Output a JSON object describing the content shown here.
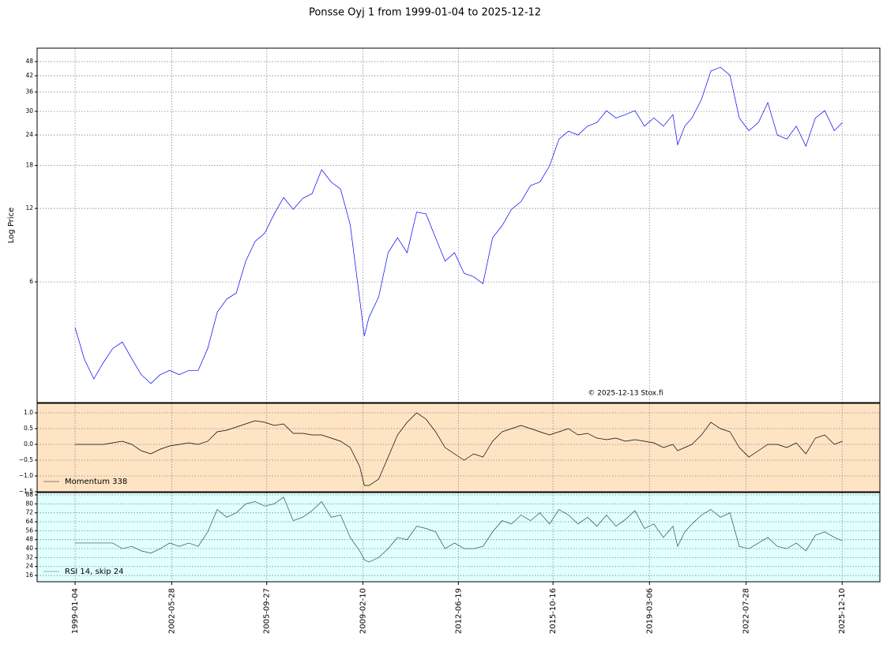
{
  "title": "Ponsse Oyj 1 from 1999-01-04 to 2025-12-12",
  "chart_data": [
    {
      "type": "line",
      "ylabel": "Log Price",
      "log": true,
      "grid": true,
      "annotation": "© 2025-12-13 Stox.fi",
      "ylim": [
        1.92,
        54.5
      ],
      "yticks": [
        6,
        12,
        18,
        24,
        30,
        36,
        42,
        48
      ],
      "x": [
        "1999-01-04",
        "1999-05-01",
        "1999-09-01",
        "2000-01-01",
        "2000-05-01",
        "2000-09-01",
        "2001-01-01",
        "2001-05-01",
        "2001-09-01",
        "2002-01-01",
        "2002-05-01",
        "2002-09-01",
        "2003-01-01",
        "2003-05-01",
        "2003-09-01",
        "2004-01-01",
        "2004-05-01",
        "2004-09-01",
        "2005-01-01",
        "2005-05-01",
        "2005-09-01",
        "2006-01-01",
        "2006-05-01",
        "2006-09-01",
        "2007-01-01",
        "2007-05-01",
        "2007-09-01",
        "2008-01-01",
        "2008-05-01",
        "2008-09-01",
        "2009-01-01",
        "2009-03-01",
        "2009-05-01",
        "2009-09-01",
        "2010-01-01",
        "2010-05-01",
        "2010-09-01",
        "2011-01-01",
        "2011-05-01",
        "2011-09-01",
        "2012-01-01",
        "2012-05-01",
        "2012-09-01",
        "2013-01-01",
        "2013-05-01",
        "2013-09-01",
        "2014-01-01",
        "2014-05-01",
        "2014-09-01",
        "2015-01-01",
        "2015-05-01",
        "2015-09-01",
        "2016-01-01",
        "2016-05-01",
        "2016-09-01",
        "2017-01-01",
        "2017-05-01",
        "2017-09-01",
        "2018-01-01",
        "2018-05-01",
        "2018-09-01",
        "2019-01-01",
        "2019-05-01",
        "2019-09-01",
        "2020-01-01",
        "2020-03-01",
        "2020-06-01",
        "2020-09-01",
        "2021-01-01",
        "2021-05-01",
        "2021-09-01",
        "2022-01-01",
        "2022-05-01",
        "2022-09-01",
        "2023-01-01",
        "2023-05-01",
        "2023-09-01",
        "2024-01-01",
        "2024-05-01",
        "2024-09-01",
        "2025-01-01",
        "2025-05-01",
        "2025-09-01",
        "2025-12-12"
      ],
      "series": [
        {
          "color": "#0000ff",
          "values": [
            3.9,
            2.9,
            2.4,
            2.8,
            3.2,
            3.4,
            2.9,
            2.5,
            2.3,
            2.5,
            2.6,
            2.5,
            2.6,
            2.6,
            3.2,
            4.5,
            5.1,
            5.4,
            7.3,
            8.8,
            9.5,
            11.4,
            13.3,
            11.9,
            13.2,
            13.8,
            17.3,
            15.4,
            14.4,
            10.3,
            5.1,
            3.6,
            4.3,
            5.2,
            7.9,
            9.1,
            7.9,
            11.6,
            11.4,
            9.1,
            7.3,
            7.9,
            6.5,
            6.3,
            5.9,
            9.1,
            10.2,
            11.9,
            12.8,
            14.9,
            15.4,
            17.9,
            23.1,
            24.9,
            24,
            26.1,
            27,
            30.2,
            28.2,
            29.1,
            30.2,
            26.1,
            28.2,
            26.1,
            29.1,
            21.9,
            26.1,
            28.2,
            33.6,
            43.9,
            45.5,
            42.2,
            28.2,
            25,
            27,
            32.6,
            24,
            23.1,
            26.1,
            21.6,
            28.2,
            30.2,
            25,
            27
          ]
        }
      ]
    },
    {
      "type": "line",
      "grid": true,
      "background": "#ffe4c4",
      "legend": "lower left",
      "ylim": [
        -1.5,
        1.3
      ],
      "yticks": [
        {
          "value": 1,
          "label": "1.0"
        },
        0.5,
        {
          "value": 0,
          "label": "0.0"
        },
        {
          "value": -0.5,
          "label": "−0.5"
        },
        {
          "value": -1,
          "label": "−1.0"
        },
        {
          "value": -1.5,
          "label": "−1.5"
        }
      ],
      "x": [
        "1999-01-04",
        "1999-05-01",
        "1999-09-01",
        "2000-01-01",
        "2000-05-01",
        "2000-09-01",
        "2001-01-01",
        "2001-05-01",
        "2001-09-01",
        "2002-01-01",
        "2002-05-01",
        "2002-09-01",
        "2003-01-01",
        "2003-05-01",
        "2003-09-01",
        "2004-01-01",
        "2004-05-01",
        "2004-09-01",
        "2005-01-01",
        "2005-05-01",
        "2005-09-01",
        "2006-01-01",
        "2006-05-01",
        "2006-09-01",
        "2007-01-01",
        "2007-05-01",
        "2007-09-01",
        "2008-01-01",
        "2008-05-01",
        "2008-09-01",
        "2009-01-01",
        "2009-03-01",
        "2009-05-01",
        "2009-09-01",
        "2010-01-01",
        "2010-05-01",
        "2010-09-01",
        "2011-01-01",
        "2011-05-01",
        "2011-09-01",
        "2012-01-01",
        "2012-05-01",
        "2012-09-01",
        "2013-01-01",
        "2013-05-01",
        "2013-09-01",
        "2014-01-01",
        "2014-05-01",
        "2014-09-01",
        "2015-01-01",
        "2015-05-01",
        "2015-09-01",
        "2016-01-01",
        "2016-05-01",
        "2016-09-01",
        "2017-01-01",
        "2017-05-01",
        "2017-09-01",
        "2018-01-01",
        "2018-05-01",
        "2018-09-01",
        "2019-01-01",
        "2019-05-01",
        "2019-09-01",
        "2020-01-01",
        "2020-03-01",
        "2020-06-01",
        "2020-09-01",
        "2021-01-01",
        "2021-05-01",
        "2021-09-01",
        "2022-01-01",
        "2022-05-01",
        "2022-09-01",
        "2023-01-01",
        "2023-05-01",
        "2023-09-01",
        "2024-01-01",
        "2024-05-01",
        "2024-09-01",
        "2025-01-01",
        "2025-05-01",
        "2025-09-01",
        "2025-12-12"
      ],
      "series": [
        {
          "name": "Momentum 338",
          "color": "#000000",
          "values": [
            0,
            0,
            0,
            0,
            0.05,
            0.1,
            0,
            -0.2,
            -0.3,
            -0.15,
            -0.05,
            0,
            0.05,
            0,
            0.1,
            0.4,
            0.45,
            0.55,
            0.65,
            0.75,
            0.7,
            0.6,
            0.65,
            0.35,
            0.35,
            0.3,
            0.3,
            0.2,
            0.1,
            -0.1,
            -0.7,
            -1.3,
            -1.3,
            -1.1,
            -0.4,
            0.3,
            0.7,
            1.0,
            0.8,
            0.4,
            -0.1,
            -0.3,
            -0.5,
            -0.3,
            -0.4,
            0.1,
            0.4,
            0.5,
            0.6,
            0.5,
            0.4,
            0.3,
            0.4,
            0.5,
            0.3,
            0.35,
            0.2,
            0.15,
            0.2,
            0.1,
            0.15,
            0.1,
            0.05,
            -0.1,
            0,
            -0.2,
            -0.1,
            0,
            0.3,
            0.7,
            0.5,
            0.4,
            -0.1,
            -0.4,
            -0.2,
            0,
            0,
            -0.1,
            0.05,
            -0.3,
            0.2,
            0.3,
            0,
            0.1
          ]
        }
      ]
    },
    {
      "type": "line",
      "grid": true,
      "background": "#e0ffff",
      "legend": "lower left",
      "ylim": [
        10.4,
        90.1
      ],
      "yticks": [
        88,
        80,
        72,
        64,
        56,
        48,
        40,
        32,
        24,
        16
      ],
      "xlim": [
        "1997-09-04",
        "2027-04-08"
      ],
      "xticks": [
        "1999-01-04",
        "2002-05-28",
        "2005-09-27",
        "2009-02-10",
        "2012-06-19",
        "2015-10-16",
        "2019-03-06",
        "2022-07-28",
        "2025-12-10"
      ],
      "x": [
        "1999-01-04",
        "1999-05-01",
        "1999-09-01",
        "2000-01-01",
        "2000-05-01",
        "2000-09-01",
        "2001-01-01",
        "2001-05-01",
        "2001-09-01",
        "2002-01-01",
        "2002-05-01",
        "2002-09-01",
        "2003-01-01",
        "2003-05-01",
        "2003-09-01",
        "2004-01-01",
        "2004-05-01",
        "2004-09-01",
        "2005-01-01",
        "2005-05-01",
        "2005-09-01",
        "2006-01-01",
        "2006-05-01",
        "2006-09-01",
        "2007-01-01",
        "2007-05-01",
        "2007-09-01",
        "2008-01-01",
        "2008-05-01",
        "2008-09-01",
        "2009-01-01",
        "2009-03-01",
        "2009-05-01",
        "2009-09-01",
        "2010-01-01",
        "2010-05-01",
        "2010-09-01",
        "2011-01-01",
        "2011-05-01",
        "2011-09-01",
        "2012-01-01",
        "2012-05-01",
        "2012-09-01",
        "2013-01-01",
        "2013-05-01",
        "2013-09-01",
        "2014-01-01",
        "2014-05-01",
        "2014-09-01",
        "2015-01-01",
        "2015-05-01",
        "2015-09-01",
        "2016-01-01",
        "2016-05-01",
        "2016-09-01",
        "2017-01-01",
        "2017-05-01",
        "2017-09-01",
        "2018-01-01",
        "2018-05-01",
        "2018-09-01",
        "2019-01-01",
        "2019-05-01",
        "2019-09-01",
        "2020-01-01",
        "2020-03-01",
        "2020-06-01",
        "2020-09-01",
        "2021-01-01",
        "2021-05-01",
        "2021-09-01",
        "2022-01-01",
        "2022-05-01",
        "2022-09-01",
        "2023-01-01",
        "2023-05-01",
        "2023-09-01",
        "2024-01-01",
        "2024-05-01",
        "2024-09-01",
        "2025-01-01",
        "2025-05-01",
        "2025-09-01",
        "2025-12-12"
      ],
      "series": [
        {
          "name": "RSI 14, skip 24",
          "color": "#2f4f4f",
          "values": [
            45,
            45,
            45,
            45,
            45,
            40,
            42,
            38,
            36,
            40,
            45,
            42,
            45,
            42,
            55,
            75,
            68,
            72,
            80,
            82,
            78,
            80,
            86,
            65,
            68,
            74,
            82,
            68,
            70,
            50,
            38,
            30,
            28,
            32,
            40,
            50,
            48,
            60,
            58,
            55,
            40,
            45,
            40,
            40,
            42,
            55,
            65,
            62,
            70,
            65,
            72,
            62,
            75,
            70,
            62,
            68,
            60,
            70,
            60,
            66,
            74,
            58,
            62,
            50,
            60,
            42,
            55,
            62,
            70,
            75,
            68,
            72,
            42,
            40,
            45,
            50,
            42,
            40,
            45,
            38,
            52,
            55,
            50,
            47
          ]
        }
      ]
    }
  ]
}
